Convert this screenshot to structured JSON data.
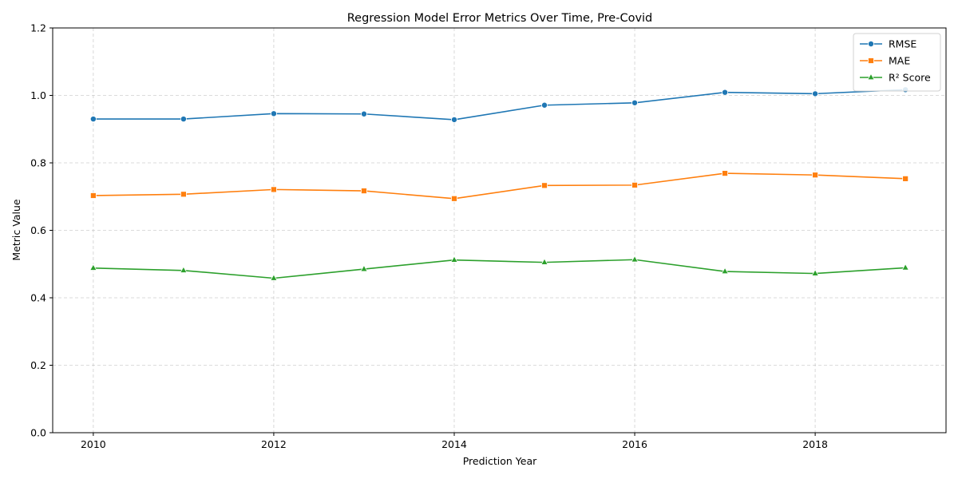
{
  "chart_data": {
    "type": "line",
    "title": "Regression Model Error Metrics Over Time, Pre-Covid",
    "xlabel": "Prediction Year",
    "ylabel": "Metric Value",
    "x": [
      2010,
      2011,
      2012,
      2013,
      2014,
      2015,
      2016,
      2017,
      2018,
      2019
    ],
    "xlim": [
      2009.55,
      2019.45
    ],
    "ylim": [
      0.0,
      1.2
    ],
    "x_ticks": [
      2010,
      2012,
      2014,
      2016,
      2018
    ],
    "x_tick_labels": [
      "2010",
      "2012",
      "2014",
      "2016",
      "2018"
    ],
    "y_ticks": [
      0.0,
      0.2,
      0.4,
      0.6,
      0.8,
      1.0,
      1.2
    ],
    "y_tick_labels": [
      "0.0",
      "0.2",
      "0.4",
      "0.6",
      "0.8",
      "1.0",
      "1.2"
    ],
    "grid": true,
    "legend_position": "top-right",
    "series": [
      {
        "name": "RMSE",
        "color": "#1f77b4",
        "marker": "circle",
        "values": [
          0.93,
          0.93,
          0.946,
          0.945,
          0.928,
          0.971,
          0.978,
          1.009,
          1.005,
          1.017
        ]
      },
      {
        "name": "MAE",
        "color": "#ff7f0e",
        "marker": "square",
        "values": [
          0.703,
          0.707,
          0.721,
          0.717,
          0.694,
          0.733,
          0.734,
          0.769,
          0.764,
          0.753
        ]
      },
      {
        "name": "R² Score",
        "color": "#2ca02c",
        "marker": "triangle",
        "values": [
          0.488,
          0.481,
          0.458,
          0.485,
          0.512,
          0.505,
          0.513,
          0.478,
          0.472,
          0.489
        ]
      }
    ]
  }
}
